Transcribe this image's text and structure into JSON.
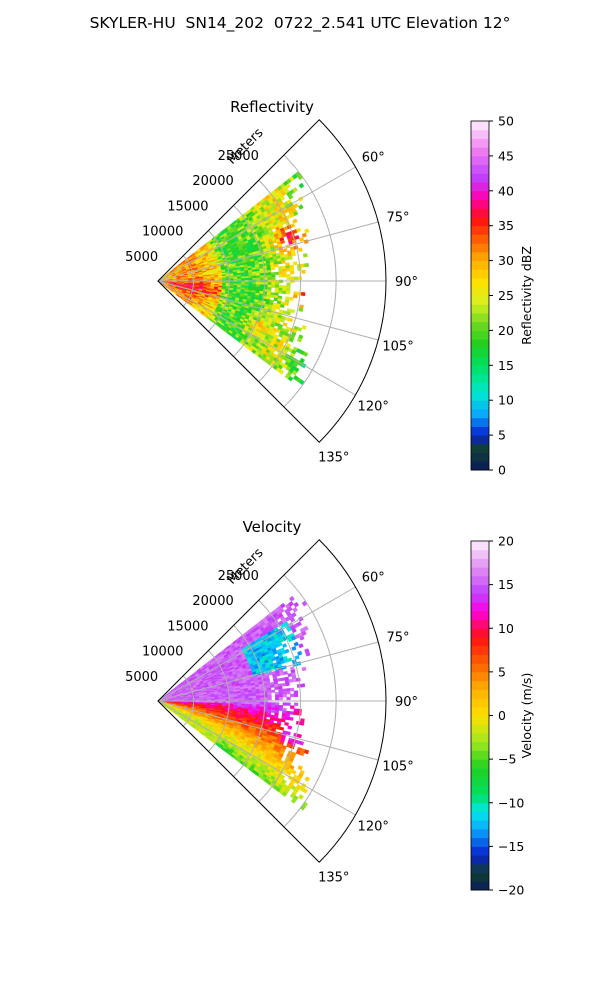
{
  "title": "SKYLER-HU  SN14_202  0722_2.541 UTC Elevation 12°",
  "chart_data": [
    {
      "type": "heatmap",
      "projection": "polar-sector",
      "title": "Reflectivity",
      "radial_label": "Meters",
      "radial_ticks": [
        "5000",
        "10000",
        "15000",
        "20000",
        "25000"
      ],
      "radial_values": [
        5000,
        10000,
        15000,
        20000,
        25000
      ],
      "rlim": [
        0,
        32000
      ],
      "data_range_m": 25500,
      "theta_ticks": [
        "60°",
        "75°",
        "90°",
        "105°",
        "120°",
        "135°"
      ],
      "theta_values": [
        60,
        75,
        90,
        105,
        120,
        135
      ],
      "theta_range": [
        45,
        135
      ],
      "data_theta_range": [
        52,
        127
      ],
      "grid": true,
      "colorbar": {
        "label": "Reflectivity dBZ",
        "min": 0,
        "max": 50,
        "ticks": [
          "0",
          "5",
          "10",
          "15",
          "20",
          "25",
          "30",
          "35",
          "40",
          "45",
          "50"
        ],
        "tick_values": [
          0,
          5,
          10,
          15,
          20,
          25,
          30,
          35,
          40,
          45,
          50
        ]
      },
      "colormap": [
        [
          0,
          "#0a1a5c"
        ],
        [
          3,
          "#104030"
        ],
        [
          5,
          "#0820d0"
        ],
        [
          8,
          "#0aa8ff"
        ],
        [
          11,
          "#00e8d0"
        ],
        [
          15,
          "#00e060"
        ],
        [
          18,
          "#20d020"
        ],
        [
          21,
          "#70d820"
        ],
        [
          24,
          "#d8f020"
        ],
        [
          27,
          "#ffe000"
        ],
        [
          30,
          "#ffb000"
        ],
        [
          33,
          "#ff6000"
        ],
        [
          36,
          "#ff1010"
        ],
        [
          39,
          "#ff00b0"
        ],
        [
          42,
          "#c040ff"
        ],
        [
          46,
          "#f080f0"
        ],
        [
          50,
          "#fff0ff"
        ]
      ]
    },
    {
      "type": "heatmap",
      "projection": "polar-sector",
      "title": "Velocity",
      "radial_label": "Meters",
      "radial_ticks": [
        "5000",
        "10000",
        "15000",
        "20000",
        "25000"
      ],
      "radial_values": [
        5000,
        10000,
        15000,
        20000,
        25000
      ],
      "rlim": [
        0,
        32000
      ],
      "data_range_m": 25500,
      "theta_ticks": [
        "60°",
        "75°",
        "90°",
        "105°",
        "120°",
        "135°"
      ],
      "theta_values": [
        60,
        75,
        90,
        105,
        120,
        135
      ],
      "theta_range": [
        45,
        135
      ],
      "data_theta_range": [
        52,
        127
      ],
      "grid": true,
      "colorbar": {
        "label": "Velocity (m/s)",
        "min": -20,
        "max": 20,
        "ticks": [
          "−20",
          "−15",
          "−10",
          "−5",
          "0",
          "5",
          "10",
          "15",
          "20"
        ],
        "tick_values": [
          -20,
          -15,
          -10,
          -5,
          0,
          5,
          10,
          15,
          20
        ]
      },
      "colormap": [
        [
          -20,
          "#0a1a5c"
        ],
        [
          -18,
          "#104030"
        ],
        [
          -16,
          "#0820d0"
        ],
        [
          -13,
          "#0aa8ff"
        ],
        [
          -11,
          "#00e8e8"
        ],
        [
          -9,
          "#00e060"
        ],
        [
          -6,
          "#20d020"
        ],
        [
          -3,
          "#a0e820"
        ],
        [
          0,
          "#ffe000"
        ],
        [
          3,
          "#ffb000"
        ],
        [
          6,
          "#ff6000"
        ],
        [
          9,
          "#ff1010"
        ],
        [
          12,
          "#ff00e0"
        ],
        [
          14,
          "#c040ff"
        ],
        [
          17,
          "#e090f0"
        ],
        [
          20,
          "#fff0ff"
        ]
      ]
    }
  ]
}
